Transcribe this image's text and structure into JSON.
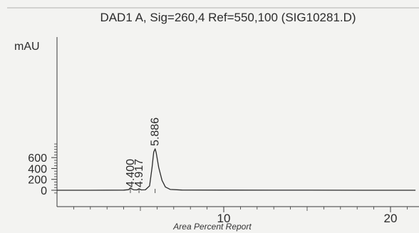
{
  "chart_data": {
    "type": "line",
    "title": "DAD1 A, Sig=260,4 Ref=550,100 (SIG10281.D)",
    "ylabel": "mAU",
    "xlabel": "",
    "caption": "Area Percent Report",
    "xlim": [
      0,
      21.5
    ],
    "ylim": [
      -60,
      930
    ],
    "x_ticks": [
      10,
      20
    ],
    "y_ticks": [
      0,
      200,
      400,
      600
    ],
    "grid": false,
    "series": [
      {
        "x": [
          0.0,
          2.0,
          4.0,
          4.3,
          4.4,
          4.5,
          4.6,
          4.8,
          4.917,
          5.05,
          5.3,
          5.55,
          5.7,
          5.8,
          5.886,
          5.95,
          6.1,
          6.3,
          6.5,
          6.8,
          7.5,
          10.0,
          15.0,
          20.0,
          21.5
        ],
        "y": [
          0,
          0,
          3,
          10,
          45,
          22,
          8,
          6,
          28,
          6,
          8,
          80,
          420,
          700,
          760,
          690,
          420,
          180,
          60,
          15,
          4,
          2,
          1,
          0,
          0
        ]
      }
    ],
    "peak_labels": [
      {
        "label": "4.400",
        "x": 4.4,
        "y": 45
      },
      {
        "label": "4.917",
        "x": 4.917,
        "y": 28
      },
      {
        "label": "5.886",
        "x": 5.886,
        "y": 760
      }
    ]
  },
  "colors": {
    "background": "#f3f3f1",
    "trace": "#2a2a2a",
    "axis": "#3a3a3a"
  }
}
